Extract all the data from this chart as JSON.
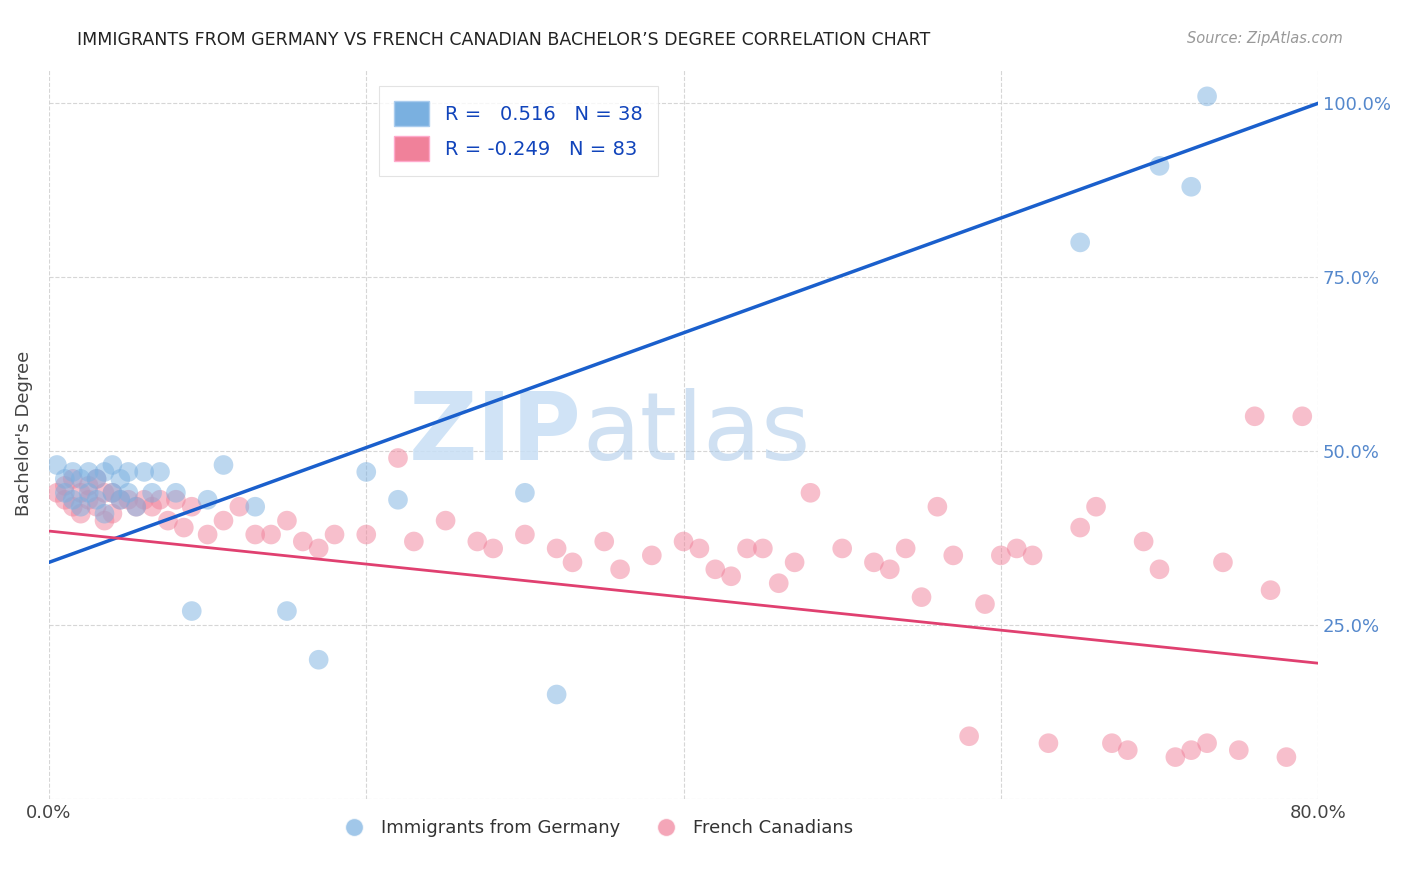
{
  "title": "IMMIGRANTS FROM GERMANY VS FRENCH CANADIAN BACHELOR’S DEGREE CORRELATION CHART",
  "source": "Source: ZipAtlas.com",
  "ylabel": "Bachelor's Degree",
  "xlim": [
    0.0,
    0.8
  ],
  "ylim": [
    0.0,
    1.05
  ],
  "legend_blue_label": "Immigrants from Germany",
  "legend_pink_label": "French Canadians",
  "blue_R": 0.516,
  "blue_N": 38,
  "pink_R": -0.249,
  "pink_N": 83,
  "blue_color": "#7ab0e0",
  "pink_color": "#f0819a",
  "blue_line_color": "#1a5fcc",
  "pink_line_color": "#e04070",
  "watermark_color": "#c8dff5",
  "background_color": "#ffffff",
  "blue_line_x": [
    0.0,
    0.8
  ],
  "blue_line_y": [
    0.34,
    1.0
  ],
  "pink_line_x": [
    0.0,
    0.8
  ],
  "pink_line_y": [
    0.385,
    0.195
  ],
  "blue_scatter_x": [
    0.005,
    0.01,
    0.01,
    0.015,
    0.015,
    0.02,
    0.02,
    0.025,
    0.025,
    0.03,
    0.03,
    0.035,
    0.035,
    0.04,
    0.04,
    0.045,
    0.045,
    0.05,
    0.05,
    0.055,
    0.06,
    0.065,
    0.07,
    0.08,
    0.09,
    0.1,
    0.11,
    0.13,
    0.15,
    0.17,
    0.2,
    0.22,
    0.3,
    0.32,
    0.65,
    0.7,
    0.72,
    0.73
  ],
  "blue_scatter_y": [
    0.48,
    0.46,
    0.44,
    0.47,
    0.43,
    0.46,
    0.42,
    0.47,
    0.44,
    0.46,
    0.43,
    0.47,
    0.41,
    0.48,
    0.44,
    0.46,
    0.43,
    0.47,
    0.44,
    0.42,
    0.47,
    0.44,
    0.47,
    0.44,
    0.27,
    0.43,
    0.48,
    0.42,
    0.27,
    0.2,
    0.47,
    0.43,
    0.44,
    0.15,
    0.8,
    0.91,
    0.88,
    1.01
  ],
  "pink_scatter_x": [
    0.005,
    0.01,
    0.01,
    0.015,
    0.015,
    0.02,
    0.02,
    0.025,
    0.025,
    0.03,
    0.03,
    0.035,
    0.035,
    0.04,
    0.04,
    0.045,
    0.05,
    0.055,
    0.06,
    0.065,
    0.07,
    0.075,
    0.08,
    0.085,
    0.09,
    0.1,
    0.11,
    0.12,
    0.13,
    0.14,
    0.15,
    0.16,
    0.17,
    0.18,
    0.2,
    0.22,
    0.23,
    0.25,
    0.27,
    0.28,
    0.3,
    0.32,
    0.33,
    0.35,
    0.36,
    0.38,
    0.4,
    0.41,
    0.42,
    0.43,
    0.44,
    0.45,
    0.46,
    0.47,
    0.48,
    0.5,
    0.52,
    0.53,
    0.54,
    0.55,
    0.56,
    0.57,
    0.58,
    0.59,
    0.6,
    0.61,
    0.62,
    0.63,
    0.65,
    0.66,
    0.67,
    0.68,
    0.69,
    0.7,
    0.71,
    0.72,
    0.73,
    0.74,
    0.75,
    0.76,
    0.77,
    0.78,
    0.79
  ],
  "pink_scatter_y": [
    0.44,
    0.45,
    0.43,
    0.46,
    0.42,
    0.44,
    0.41,
    0.45,
    0.43,
    0.46,
    0.42,
    0.44,
    0.4,
    0.44,
    0.41,
    0.43,
    0.43,
    0.42,
    0.43,
    0.42,
    0.43,
    0.4,
    0.43,
    0.39,
    0.42,
    0.38,
    0.4,
    0.42,
    0.38,
    0.38,
    0.4,
    0.37,
    0.36,
    0.38,
    0.38,
    0.49,
    0.37,
    0.4,
    0.37,
    0.36,
    0.38,
    0.36,
    0.34,
    0.37,
    0.33,
    0.35,
    0.37,
    0.36,
    0.33,
    0.32,
    0.36,
    0.36,
    0.31,
    0.34,
    0.44,
    0.36,
    0.34,
    0.33,
    0.36,
    0.29,
    0.42,
    0.35,
    0.09,
    0.28,
    0.35,
    0.36,
    0.35,
    0.08,
    0.39,
    0.42,
    0.08,
    0.07,
    0.37,
    0.33,
    0.06,
    0.07,
    0.08,
    0.34,
    0.07,
    0.55,
    0.3,
    0.06,
    0.55
  ]
}
